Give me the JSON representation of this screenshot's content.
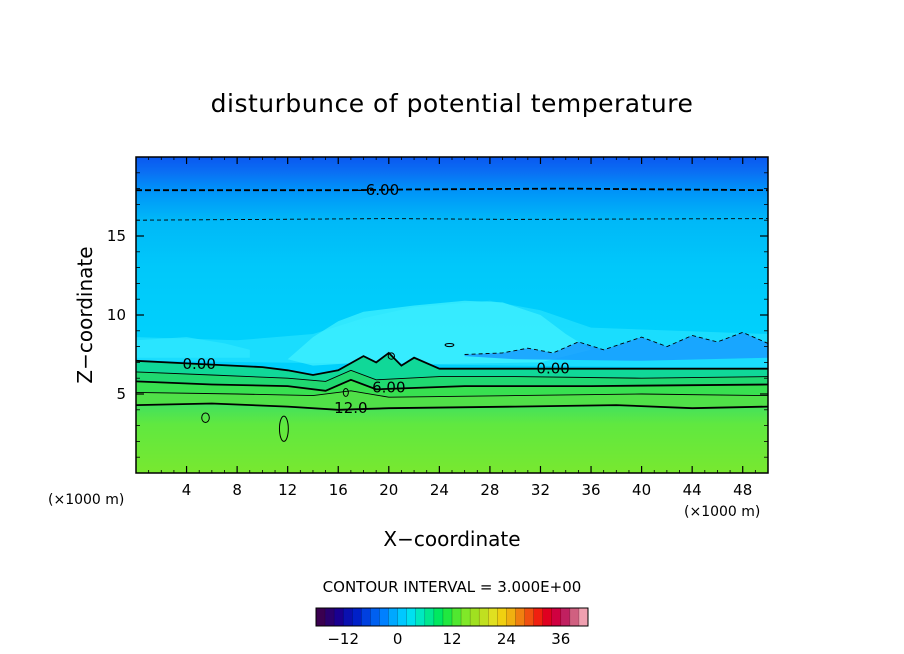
{
  "chart_data": {
    "type": "heatmap",
    "title": "disturbunce of potential temperature",
    "xlabel": "X−coordinate",
    "ylabel": "Z−coordinate",
    "x_unit_left": "(×1000 m)",
    "x_unit_right": "(×1000 m)",
    "xlim": [
      0,
      50
    ],
    "ylim": [
      0,
      20
    ],
    "x_ticks": [
      4,
      8,
      12,
      16,
      20,
      24,
      28,
      32,
      36,
      40,
      44,
      48
    ],
    "y_ticks": [
      5,
      10,
      15
    ],
    "contour_interval_text": "CONTOUR INTERVAL = 3.000E+00",
    "contour_interval": 3.0,
    "contour_labels": [
      {
        "text": "−6.00",
        "x": 19,
        "z": 17.9
      },
      {
        "text": "0.00",
        "x": 5,
        "z": 6.9
      },
      {
        "text": "0.00",
        "x": 33,
        "z": 6.6
      },
      {
        "text": "6.00",
        "x": 20,
        "z": 5.4
      },
      {
        "text": "12.0",
        "x": 17,
        "z": 4.1
      }
    ],
    "contour_lines": [
      {
        "level": -6,
        "style": "dashed",
        "points": [
          [
            0,
            17.9
          ],
          [
            17,
            17.9
          ],
          [
            22,
            17.95
          ],
          [
            34,
            18.0
          ],
          [
            50,
            17.9
          ]
        ]
      },
      {
        "level": -3,
        "style": "dashed",
        "points": [
          [
            0,
            16.0
          ],
          [
            20,
            16.1
          ],
          [
            30,
            16.05
          ],
          [
            50,
            16.1
          ]
        ]
      },
      {
        "level": -3,
        "style": "dashed",
        "points": [
          [
            26,
            7.5
          ],
          [
            29,
            7.6
          ],
          [
            31,
            7.9
          ],
          [
            33,
            7.6
          ],
          [
            35,
            8.3
          ],
          [
            37,
            7.8
          ],
          [
            40,
            8.6
          ],
          [
            42,
            8.0
          ],
          [
            44,
            8.7
          ],
          [
            46,
            8.3
          ],
          [
            48,
            8.9
          ],
          [
            50,
            8.2
          ]
        ]
      },
      {
        "level": 0,
        "style": "solid",
        "points": [
          [
            0,
            7.1
          ],
          [
            5,
            6.9
          ],
          [
            10,
            6.7
          ],
          [
            12,
            6.5
          ],
          [
            14,
            6.2
          ],
          [
            16,
            6.5
          ],
          [
            18,
            7.4
          ],
          [
            19,
            7.0
          ],
          [
            20,
            7.6
          ],
          [
            21,
            6.8
          ],
          [
            22,
            7.3
          ],
          [
            24,
            6.6
          ],
          [
            30,
            6.6
          ],
          [
            40,
            6.6
          ],
          [
            50,
            6.6
          ]
        ]
      },
      {
        "level": 3,
        "style": "solid",
        "points": [
          [
            0,
            6.4
          ],
          [
            6,
            6.2
          ],
          [
            12,
            6.0
          ],
          [
            15,
            5.8
          ],
          [
            17,
            6.5
          ],
          [
            19,
            5.9
          ],
          [
            24,
            6.1
          ],
          [
            30,
            6.1
          ],
          [
            40,
            6.0
          ],
          [
            50,
            6.1
          ]
        ]
      },
      {
        "level": 6,
        "style": "solid",
        "points": [
          [
            0,
            5.8
          ],
          [
            6,
            5.6
          ],
          [
            12,
            5.5
          ],
          [
            15,
            5.2
          ],
          [
            17,
            5.9
          ],
          [
            19,
            5.3
          ],
          [
            26,
            5.5
          ],
          [
            36,
            5.5
          ],
          [
            50,
            5.6
          ]
        ]
      },
      {
        "level": 9,
        "style": "solid",
        "points": [
          [
            0,
            5.1
          ],
          [
            8,
            5.0
          ],
          [
            14,
            4.9
          ],
          [
            17,
            5.2
          ],
          [
            20,
            4.8
          ],
          [
            30,
            4.9
          ],
          [
            40,
            5.0
          ],
          [
            50,
            4.9
          ]
        ]
      },
      {
        "level": 12,
        "style": "solid",
        "points": [
          [
            0,
            4.3
          ],
          [
            6,
            4.4
          ],
          [
            12,
            4.2
          ],
          [
            16,
            4.0
          ],
          [
            20,
            4.1
          ],
          [
            30,
            4.2
          ],
          [
            38,
            4.3
          ],
          [
            44,
            4.1
          ],
          [
            50,
            4.2
          ]
        ]
      }
    ],
    "small_features": [
      {
        "shape": "ellipse",
        "x": 5.5,
        "z": 3.5,
        "rx": 0.3,
        "rz": 0.3
      },
      {
        "shape": "ellipse",
        "x": 11.7,
        "z": 2.8,
        "rx": 0.35,
        "rz": 0.8
      },
      {
        "shape": "ellipse",
        "x": 16.6,
        "z": 5.1,
        "rx": 0.2,
        "rz": 0.25
      },
      {
        "shape": "ellipse",
        "x": 20.2,
        "z": 7.4,
        "rx": 0.25,
        "rz": 0.2
      },
      {
        "shape": "ellipse",
        "x": 24.8,
        "z": 8.1,
        "rx": 0.35,
        "rz": 0.1
      }
    ],
    "colorbar": {
      "min": -18,
      "max": 42,
      "ticks": [
        "−12",
        "0",
        "12",
        "24",
        "36"
      ],
      "tick_values": [
        -12,
        0,
        12,
        24,
        36
      ],
      "colors": [
        "#3a0050",
        "#2a006e",
        "#1a0090",
        "#0a10b0",
        "#0020c8",
        "#0040e0",
        "#0060f0",
        "#0080ff",
        "#00a8ff",
        "#00c8ff",
        "#00e0f0",
        "#00e8c0",
        "#00e890",
        "#00e860",
        "#20e840",
        "#50e830",
        "#80e828",
        "#a0e020",
        "#c0e020",
        "#e0e020",
        "#f0d010",
        "#f0b010",
        "#f08010",
        "#f05010",
        "#f02010",
        "#e00020",
        "#d00040",
        "#c02060",
        "#d06080",
        "#f0a0b0"
      ]
    },
    "colors": {
      "top_band": "#0a58f0",
      "upper_sky": "#00bcf8",
      "mid_light": "#30e8ff",
      "blob": "#40f0ff",
      "blue_patch": "#1898ff",
      "low_green": "#70e838",
      "mid_green": "#40e060",
      "teal": "#10d898"
    }
  }
}
